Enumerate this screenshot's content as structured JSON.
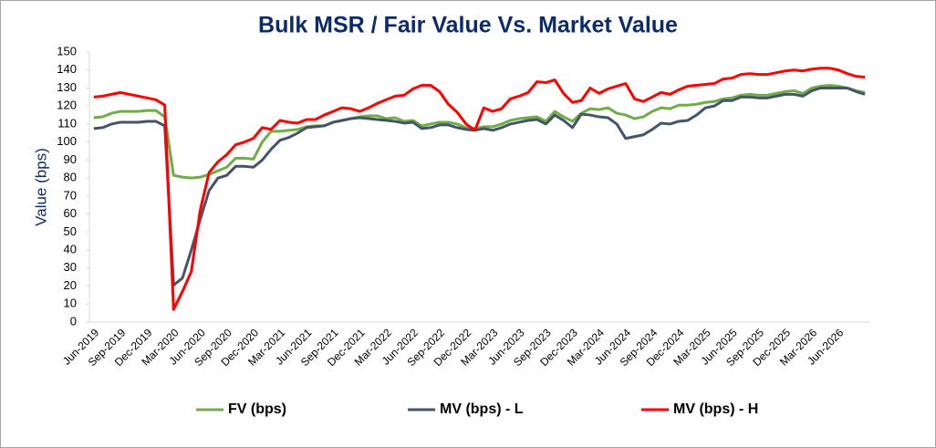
{
  "chart_data": {
    "type": "line",
    "title": "Bulk MSR / Fair Value Vs. Market Value",
    "y_label": "Value (bps)",
    "categories": [
      "Jun-2019",
      null,
      null,
      "Sep-2019",
      null,
      null,
      "Dec-2019",
      null,
      null,
      "Mar-2020",
      null,
      null,
      "Jun-2020",
      null,
      null,
      "Sep-2020",
      null,
      null,
      "Dec-2020",
      null,
      null,
      "Mar-2021",
      null,
      null,
      "Jun-2021",
      null,
      null,
      "Sep-2021",
      null,
      null,
      "Dec-2021",
      null,
      null,
      "Mar-2022",
      null,
      null,
      "Jun-2022",
      null,
      null,
      "Sep-2022",
      null,
      null,
      "Dec-2022",
      null,
      null,
      "Mar-2023",
      null,
      null,
      "Jun-2023",
      null,
      null,
      "Sep-2023",
      null,
      null,
      "Dec-2023",
      null,
      null,
      "Mar-2024",
      null,
      null,
      "Jun-2024",
      null,
      null,
      "Sep-2024",
      null,
      null,
      "Dec-2024",
      null,
      null,
      "Mar-2025",
      null,
      null,
      "Jun-2025",
      null,
      null,
      "Sep-2025",
      null,
      null,
      "Dec-2025",
      null,
      null,
      "Mar-2026",
      null,
      null,
      "Jun-2026",
      null,
      null,
      null
    ],
    "series": [
      {
        "name": "FV (bps)",
        "color": "#70ad47",
        "values": [
          113.5,
          114,
          116,
          117,
          117,
          117,
          117.5,
          117.5,
          114,
          81.5,
          80.5,
          80,
          80.5,
          82,
          84,
          86,
          91,
          91,
          90.5,
          100,
          106,
          106,
          106.5,
          107,
          108.5,
          109,
          109,
          111,
          112,
          113,
          114,
          114.5,
          114.5,
          113,
          113.5,
          111.5,
          112,
          109,
          110,
          111,
          111,
          110,
          108,
          107.5,
          108.5,
          108.5,
          110,
          112,
          113,
          113.5,
          114,
          111.5,
          117,
          114,
          111.5,
          116,
          118.5,
          118,
          119,
          116,
          115,
          113,
          114,
          117,
          119,
          118.5,
          120.5,
          120.5,
          121,
          122,
          122.5,
          124,
          124.5,
          126,
          126.5,
          126,
          126,
          127,
          128,
          128.5,
          127,
          130,
          131,
          131.5,
          131,
          130,
          128.5,
          127.5
        ]
      },
      {
        "name": "MV (bps) - L",
        "color": "#44546a",
        "values": [
          107.5,
          108,
          110,
          111,
          111,
          111,
          111.5,
          111.5,
          109,
          20.5,
          24.5,
          40,
          57,
          73,
          80,
          81.5,
          86.5,
          86.5,
          86,
          90,
          96,
          101,
          102.5,
          105,
          108,
          108.5,
          109,
          111,
          112,
          113,
          113.5,
          113,
          112.5,
          112,
          111.5,
          110.5,
          111,
          107.5,
          108,
          109.5,
          109.5,
          108,
          107,
          106.5,
          107.5,
          106.5,
          108,
          110,
          111,
          112,
          112.5,
          110,
          115,
          112,
          108,
          115.5,
          115,
          114,
          113.5,
          110,
          102,
          103,
          104,
          107,
          110.5,
          110,
          111.5,
          112,
          115,
          119,
          120,
          123,
          123,
          125,
          125,
          124.5,
          124.5,
          125.5,
          126.5,
          126.5,
          125.5,
          128.5,
          130,
          130,
          130,
          130,
          128,
          126.5
        ]
      },
      {
        "name": "MV (bps) - H",
        "color": "#ff0000",
        "values": [
          125,
          125.5,
          126.5,
          127.5,
          126.5,
          125.5,
          124.5,
          123.5,
          120.5,
          7,
          17,
          28,
          62,
          83,
          89,
          93,
          98.5,
          100,
          102,
          108,
          107,
          112,
          111,
          110.5,
          112.5,
          112.5,
          115,
          117,
          119,
          118.5,
          117,
          119,
          121.5,
          123.5,
          125.5,
          126,
          129.5,
          131.5,
          131.5,
          128,
          121,
          116.5,
          110,
          106.5,
          119,
          117,
          118.5,
          124,
          125.5,
          127.5,
          133.5,
          133,
          134.5,
          127,
          122,
          123,
          130,
          127,
          129.5,
          131,
          132.5,
          124,
          122.5,
          125,
          127.5,
          126.5,
          129,
          131,
          131.5,
          132,
          132.5,
          135,
          135.5,
          137.5,
          138,
          137.5,
          137.5,
          138.5,
          139.5,
          140,
          139.5,
          140.5,
          141,
          141,
          140,
          138,
          136.5,
          136
        ]
      }
    ],
    "ylim": [
      0,
      150
    ],
    "yticks": [
      0,
      10,
      20,
      30,
      40,
      50,
      60,
      70,
      80,
      90,
      100,
      110,
      120,
      130,
      140,
      150
    ],
    "grid": false,
    "legend": "bottom"
  }
}
